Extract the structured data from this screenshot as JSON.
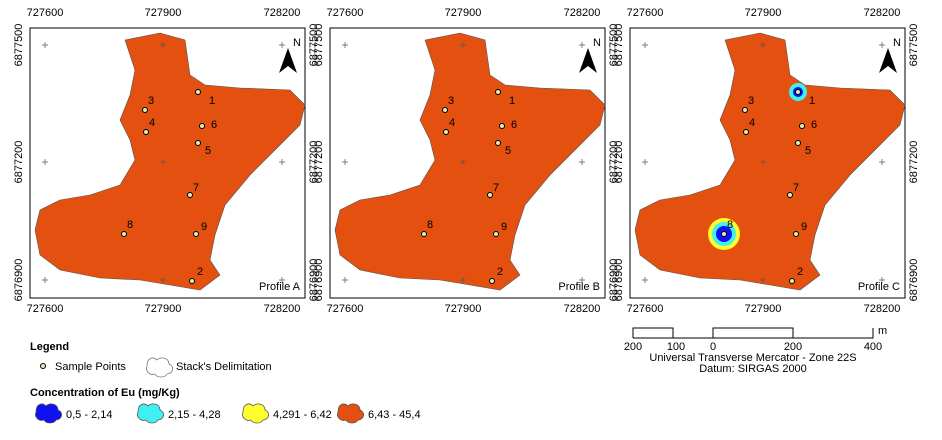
{
  "panels": [
    {
      "profile": "Profile A",
      "x_labels": [
        "727600",
        "727900",
        "728200"
      ],
      "y_labels": [
        "6877500",
        "6877200",
        "6876900"
      ],
      "north": "N",
      "points": [
        "1",
        "2",
        "3",
        "4",
        "5",
        "6",
        "7",
        "8",
        "9"
      ]
    },
    {
      "profile": "Profile B",
      "x_labels": [
        "727600",
        "727900",
        "728200"
      ],
      "y_labels": [
        "6877500",
        "6877200",
        "6876900"
      ],
      "north": "N",
      "points": [
        "1",
        "2",
        "3",
        "4",
        "5",
        "6",
        "7",
        "8",
        "9"
      ]
    },
    {
      "profile": "Profile C",
      "x_labels": [
        "727600",
        "727900",
        "728200"
      ],
      "y_labels": [
        "6877500",
        "6877200",
        "6876900"
      ],
      "north": "N",
      "points": [
        "1",
        "2",
        "3",
        "4",
        "5",
        "6",
        "7",
        "8",
        "9"
      ]
    }
  ],
  "scale_bar": {
    "labels": [
      "200",
      "100",
      "0",
      "200",
      "400"
    ],
    "unit": "m",
    "projection": "Universal Transverse Mercator - Zone 22S",
    "datum": "Datum: SIRGAS 2000"
  },
  "legend": {
    "title": "Legend",
    "sample_points": "Sample Points",
    "delimitation": "Stack's Delimitation",
    "concentration_title": "Concentration of Eu (mg/Kg)",
    "classes": [
      "0,5 - 2,14",
      "2,15 - 4,28",
      "4,291 - 6,42",
      "6,43 - 45,4"
    ]
  }
}
